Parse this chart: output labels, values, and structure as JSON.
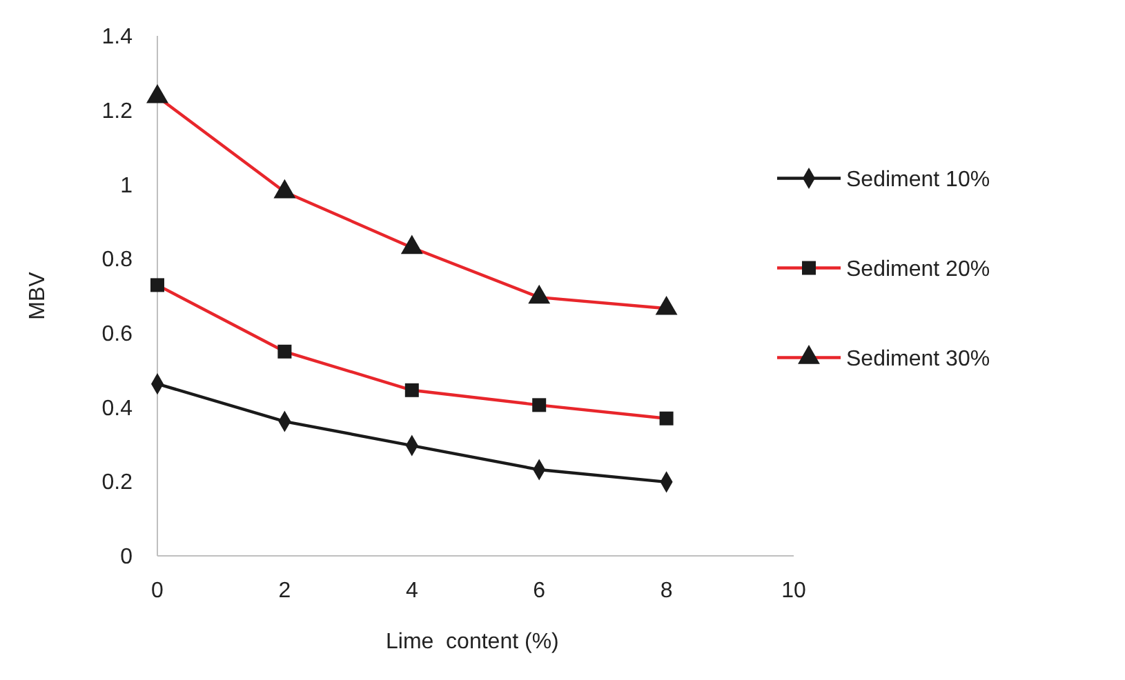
{
  "chart_data": {
    "type": "line",
    "xlabel": "Lime  content (%)",
    "ylabel": "MBV",
    "x": [
      0,
      2,
      4,
      6,
      8
    ],
    "xlim": [
      0,
      10
    ],
    "xticks": [
      0,
      2,
      4,
      6,
      8,
      10
    ],
    "ylim": [
      0,
      1.4
    ],
    "yticks": [
      0,
      0.2,
      0.4,
      0.6,
      0.8,
      1,
      1.2,
      1.4
    ],
    "grid": false,
    "legend": "right",
    "series": [
      {
        "name": "Sediment 10%",
        "color": "#1a1a1a",
        "marker": "diamond",
        "values": [
          0.463,
          0.362,
          0.297,
          0.232,
          0.199
        ]
      },
      {
        "name": "Sediment 20%",
        "color": "#e8262b",
        "marker": "square",
        "values": [
          0.729,
          0.55,
          0.446,
          0.406,
          0.37
        ]
      },
      {
        "name": "Sediment 30%",
        "color": "#e8262b",
        "marker": "triangle",
        "values": [
          1.236,
          0.98,
          0.83,
          0.696,
          0.666
        ]
      }
    ]
  }
}
